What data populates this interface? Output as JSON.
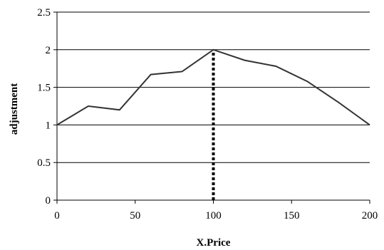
{
  "chart_data": {
    "type": "line",
    "title": "",
    "xlabel": "X.Price",
    "ylabel": "adjustment",
    "xlim": [
      0,
      200
    ],
    "ylim": [
      0,
      2.5
    ],
    "xticks": [
      0,
      50,
      100,
      150,
      200
    ],
    "yticks": [
      0,
      0.5,
      1,
      1.5,
      2,
      2.5
    ],
    "xtick_labels": [
      "0",
      "50",
      "100",
      "150",
      "200"
    ],
    "ytick_labels": [
      "0",
      "0.5",
      "1",
      "1.5",
      "2",
      "2.5"
    ],
    "grid": {
      "horizontal": true,
      "vertical": false
    },
    "legend": "none",
    "series": [
      {
        "x": [
          0,
          20,
          40,
          60,
          80,
          100,
          120,
          140,
          160,
          180,
          200
        ],
        "y": [
          1.0,
          1.25,
          1.2,
          1.67,
          1.71,
          2.0,
          1.86,
          1.78,
          1.58,
          1.3,
          1.0
        ],
        "color": "#333333",
        "style": "solid"
      }
    ],
    "reference_lines": [
      {
        "orientation": "vertical",
        "x": 100,
        "y_from": 0,
        "y_to": 2.0,
        "color": "#000000",
        "style": "dotted"
      }
    ]
  }
}
